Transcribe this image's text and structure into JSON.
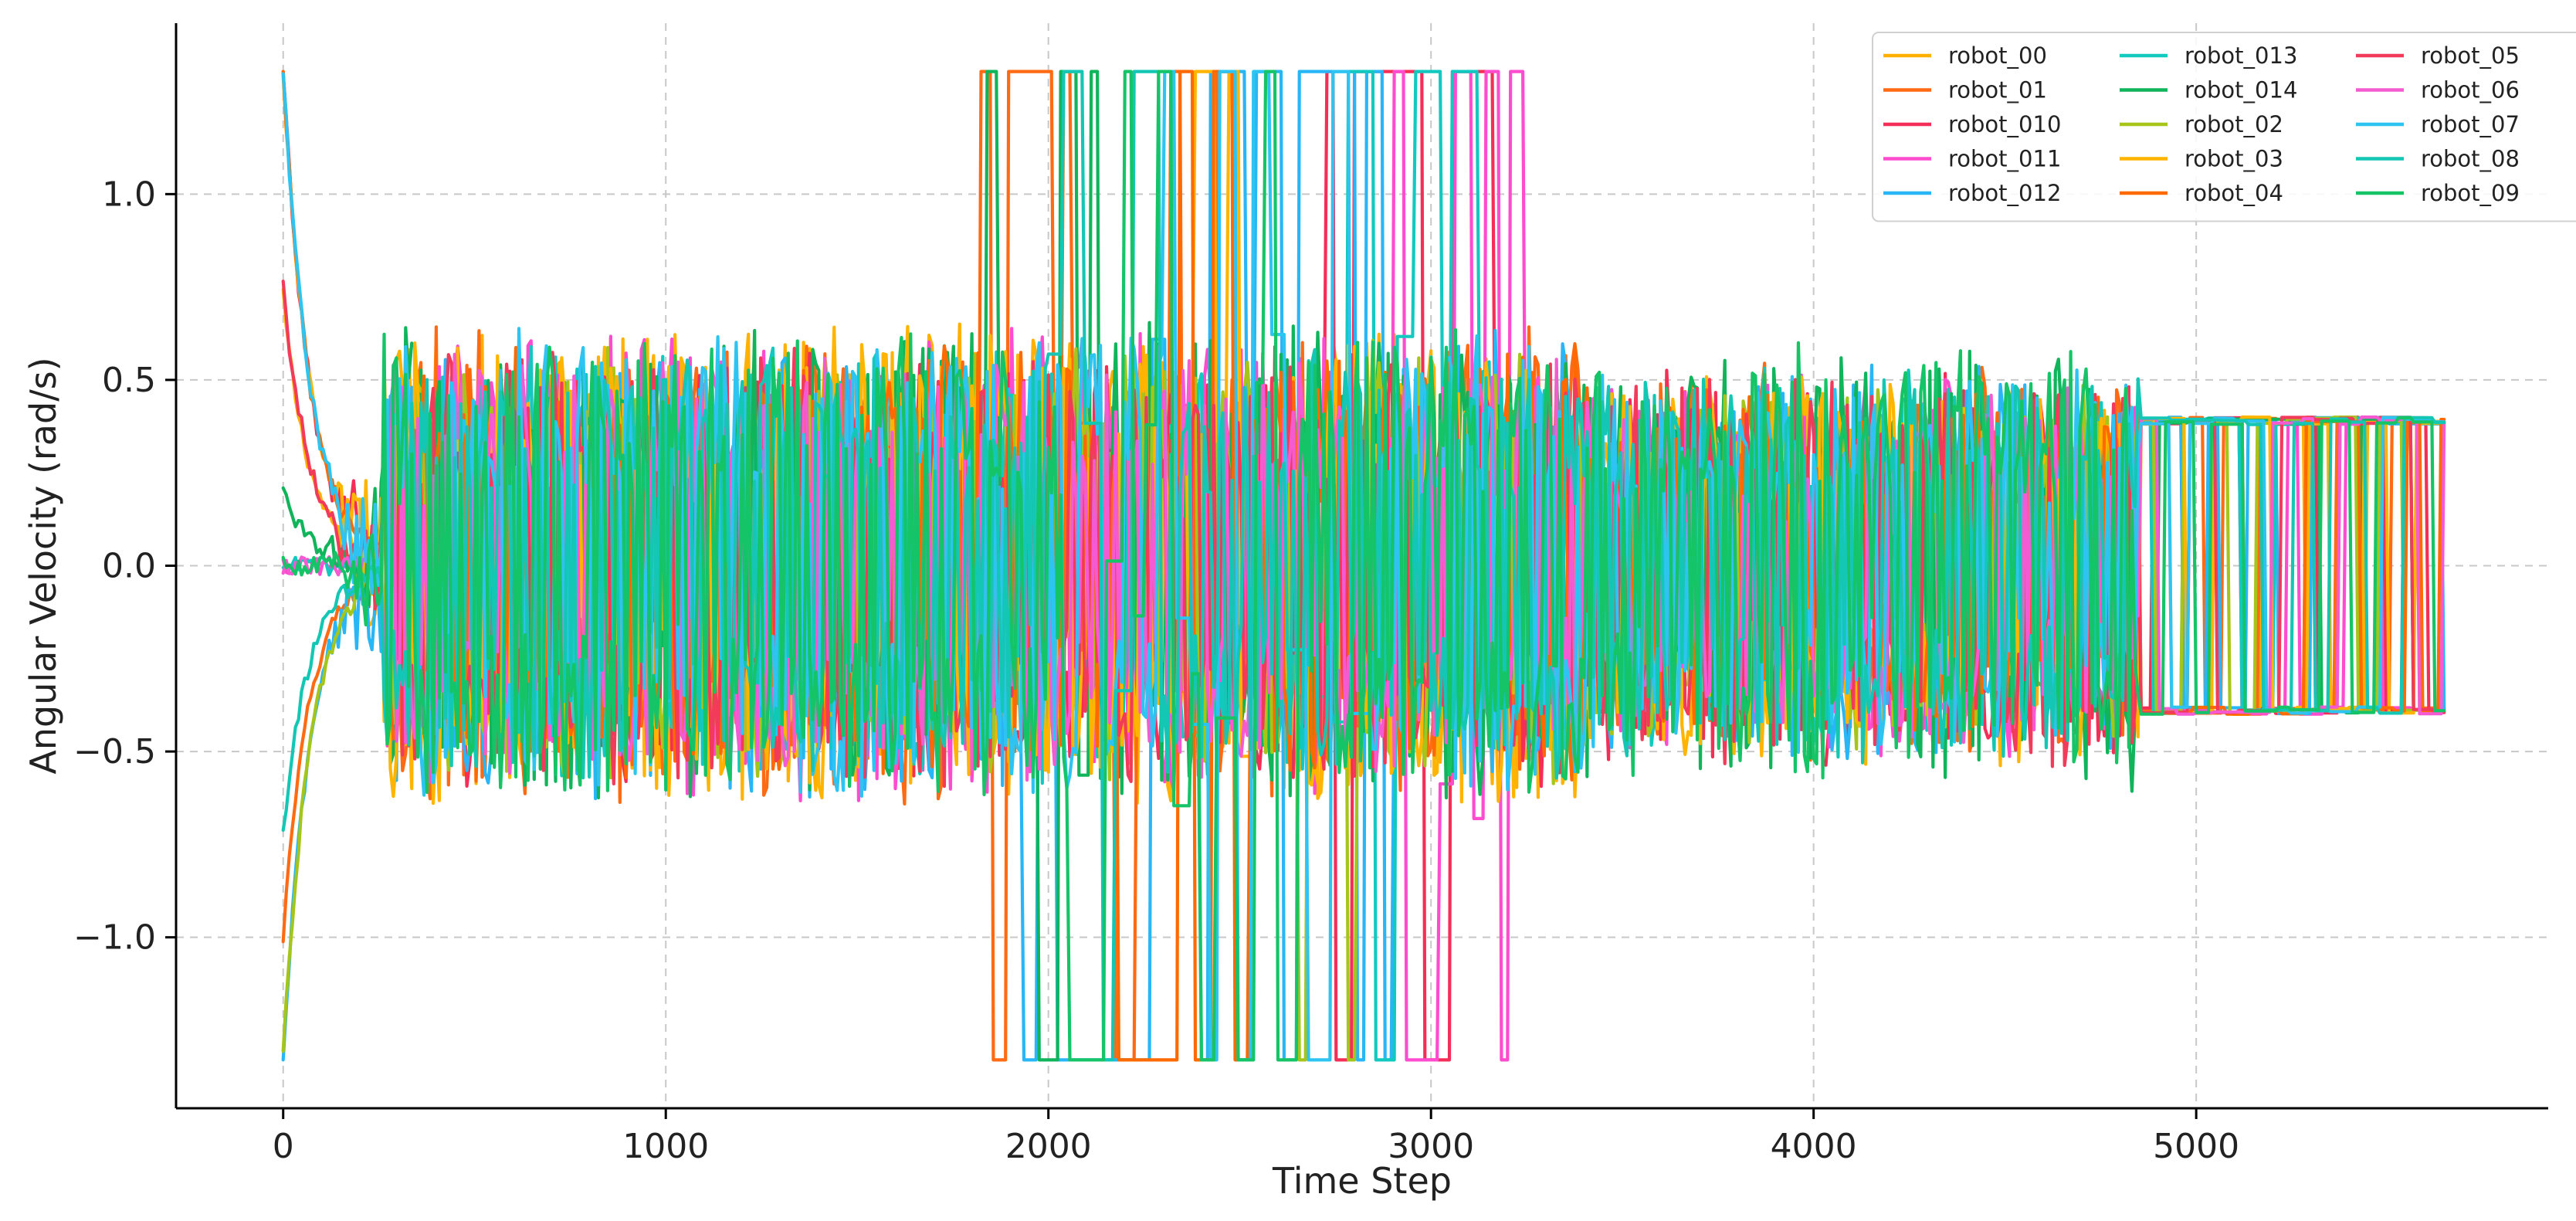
{
  "chart_data": {
    "type": "line",
    "title": "",
    "xlabel": "Time Step",
    "ylabel": "Angular Velocity (rad/s)",
    "xlim": [
      -280,
      5920
    ],
    "ylim": [
      -1.46,
      1.46
    ],
    "xticks": [
      0,
      1000,
      2000,
      3000,
      4000,
      5000
    ],
    "xtick_labels": [
      "0",
      "1000",
      "2000",
      "3000",
      "4000",
      "5000"
    ],
    "yticks": [
      -1.0,
      -0.5,
      0.0,
      0.5,
      1.0
    ],
    "ytick_labels": [
      "−1.0",
      "−0.5",
      "0.0",
      "0.5",
      "1.0"
    ],
    "grid": true,
    "legend": {
      "placement": "top-right",
      "columns": 3
    },
    "x_range": [
      0,
      5650
    ],
    "clip_value": 1.33,
    "series": [
      {
        "name": "robot_00",
        "color": "#ffb000",
        "start": 0.72,
        "burst": [],
        "amp": [
          0.55,
          0.35,
          0.35
        ]
      },
      {
        "name": "robot_01",
        "color": "#ff6a13",
        "start": -1.0,
        "burst": [
          1820,
          2440
        ],
        "amp": [
          0.55,
          0.65,
          0.45
        ]
      },
      {
        "name": "robot_010",
        "color": "#f52e57",
        "start": 1.33,
        "burst": [
          2700,
          3200
        ],
        "amp": [
          0.5,
          0.6,
          0.45
        ]
      },
      {
        "name": "robot_011",
        "color": "#ff4ccf",
        "start": 0.0,
        "burst": [
          2900,
          3270
        ],
        "amp": [
          0.55,
          0.7,
          0.45
        ]
      },
      {
        "name": "robot_012",
        "color": "#29b6f6",
        "start": -1.33,
        "burst": [
          1930,
          2900
        ],
        "amp": [
          0.55,
          0.7,
          0.45
        ]
      },
      {
        "name": "robot_013",
        "color": "#12c9c0",
        "start": 0.0,
        "burst": [
          2700,
          3120
        ],
        "amp": [
          0.5,
          0.65,
          0.4
        ]
      },
      {
        "name": "robot_014",
        "color": "#10b45a",
        "start": 0.2,
        "burst": [
          1840,
          2130
        ],
        "amp": [
          0.55,
          0.65,
          0.5
        ]
      },
      {
        "name": "robot_02",
        "color": "#a6c51a",
        "start": -1.33,
        "burst": [
          2650,
          2800
        ],
        "amp": [
          0.5,
          0.55,
          0.4
        ]
      },
      {
        "name": "robot_03",
        "color": "#ffb400",
        "start": 1.33,
        "burst": [
          2380,
          2580
        ],
        "amp": [
          0.55,
          0.6,
          0.45
        ]
      },
      {
        "name": "robot_04",
        "color": "#ff6a00",
        "start": 1.33,
        "burst": [
          2180,
          2520
        ],
        "amp": [
          0.5,
          0.6,
          0.4
        ]
      },
      {
        "name": "robot_05",
        "color": "#f23a5a",
        "start": 0.75,
        "burst": [],
        "amp": [
          0.5,
          0.45,
          0.45
        ]
      },
      {
        "name": "robot_06",
        "color": "#f45bd2",
        "start": 0.0,
        "burst": [],
        "amp": [
          0.5,
          0.4,
          0.4
        ]
      },
      {
        "name": "robot_07",
        "color": "#2ec4f2",
        "start": 1.33,
        "burst": [
          2300,
          2860
        ],
        "amp": [
          0.55,
          0.65,
          0.45
        ]
      },
      {
        "name": "robot_08",
        "color": "#14c7b5",
        "start": -0.72,
        "burst": [
          2000,
          2300
        ],
        "amp": [
          0.5,
          0.6,
          0.45
        ]
      },
      {
        "name": "robot_09",
        "color": "#14c466",
        "start": 0.0,
        "burst": [
          2050,
          2650
        ],
        "amp": [
          0.55,
          0.65,
          0.5
        ]
      }
    ]
  }
}
